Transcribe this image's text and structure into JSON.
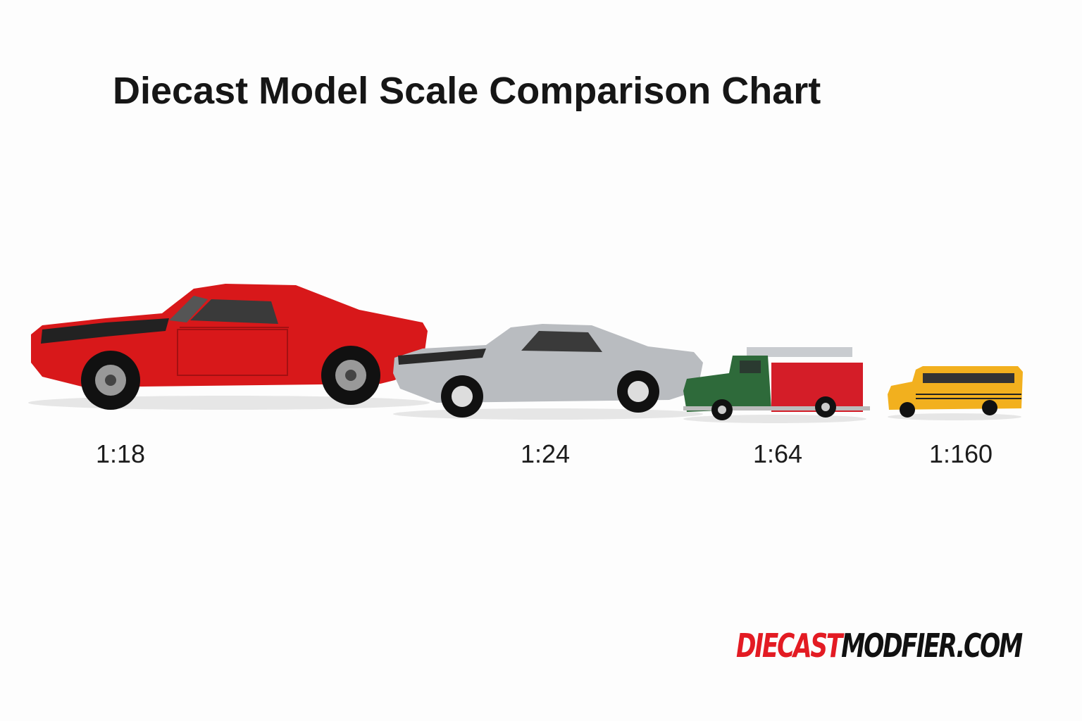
{
  "header": {
    "title": "Diecast Model Scale Comparison Chart"
  },
  "models": [
    {
      "scale": "1:18"
    },
    {
      "scale": "1:24"
    },
    {
      "scale": "1:64"
    },
    {
      "scale": "1:160"
    }
  ],
  "brand": {
    "first": "DIECAST",
    "second": "MODFIER.COM"
  }
}
